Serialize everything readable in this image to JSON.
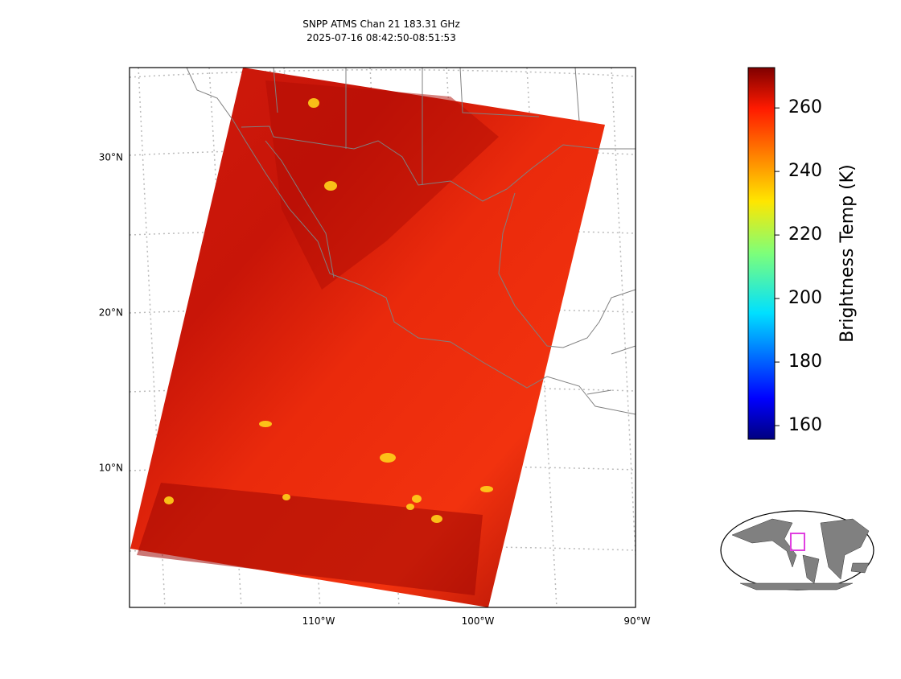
{
  "title": [
    "SNPP ATMS Chan 21 183.31 GHz",
    "2025-07-16 08:42:50-08:51:53"
  ],
  "lat_labels": [
    "30°N",
    "20°N",
    "10°N"
  ],
  "lon_labels": [
    "110°W",
    "100°W",
    "90°W"
  ],
  "colorbar": {
    "label": "Brightness Temp (K)",
    "lim": [
      155.7,
      272.7
    ],
    "ticks": [
      160,
      180,
      200,
      220,
      240,
      260
    ]
  }
}
